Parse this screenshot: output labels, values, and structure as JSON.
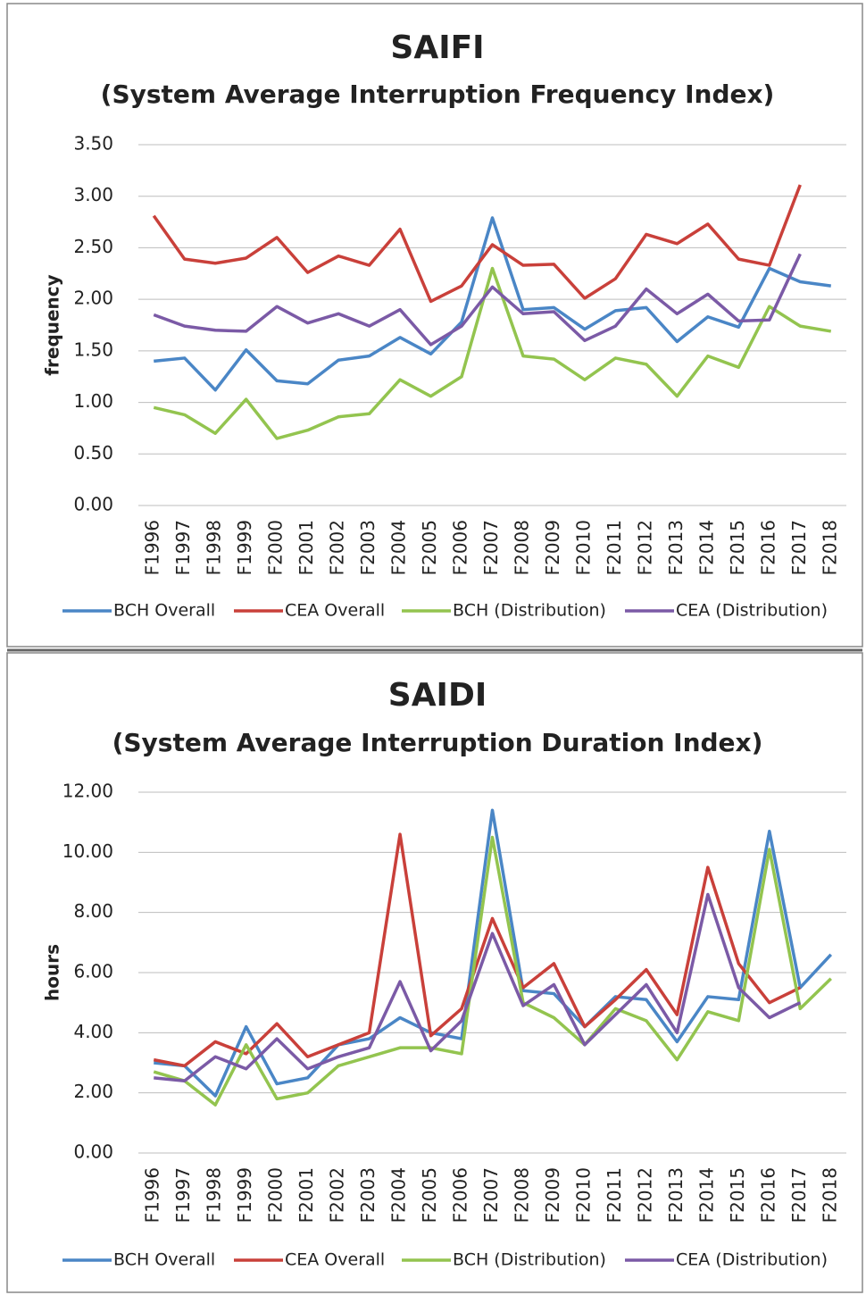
{
  "chart_data": [
    {
      "type": "line",
      "title": "SAIFI",
      "subtitle": "(System Average Interruption Frequency Index)",
      "y_label": "frequency",
      "categories": [
        "F1996",
        "F1997",
        "F1998",
        "F1999",
        "F2000",
        "F2001",
        "F2002",
        "F2003",
        "F2004",
        "F2005",
        "F2006",
        "F2007",
        "F2008",
        "F2009",
        "F2010",
        "F2011",
        "F2012",
        "F2013",
        "F2014",
        "F2015",
        "F2016",
        "F2017",
        "F2018"
      ],
      "ylim": [
        0,
        3.5
      ],
      "yticks": [
        {
          "value": 0,
          "label": "0.00"
        },
        {
          "value": 0.5,
          "label": "0.50"
        },
        {
          "value": 1,
          "label": "1.00"
        },
        {
          "value": 1.5,
          "label": "1.50"
        },
        {
          "value": 2,
          "label": "2.00"
        },
        {
          "value": 2.5,
          "label": "2.50"
        },
        {
          "value": 3,
          "label": "3.00"
        },
        {
          "value": 3.5,
          "label": "3.50"
        }
      ],
      "grid": true,
      "legend": "bottom",
      "series": [
        {
          "name": "BCH Overall",
          "color": "#4a86c6",
          "values": [
            1.4,
            1.43,
            1.12,
            1.51,
            1.21,
            1.18,
            1.41,
            1.45,
            1.63,
            1.47,
            1.78,
            2.79,
            1.9,
            1.92,
            1.71,
            1.89,
            1.92,
            1.59,
            1.83,
            1.73,
            2.3,
            2.17,
            2.13
          ]
        },
        {
          "name": "CEA Overall",
          "color": "#c9403a",
          "values": [
            2.81,
            2.39,
            2.35,
            2.4,
            2.6,
            2.26,
            2.42,
            2.33,
            2.68,
            1.98,
            2.13,
            2.53,
            2.33,
            2.34,
            2.01,
            2.2,
            2.63,
            2.54,
            2.73,
            2.39,
            2.33,
            3.11,
            null
          ]
        },
        {
          "name": "BCH (Distribution)",
          "color": "#93c44f",
          "values": [
            0.95,
            0.88,
            0.7,
            1.03,
            0.65,
            0.73,
            0.86,
            0.89,
            1.22,
            1.06,
            1.25,
            2.3,
            1.45,
            1.42,
            1.22,
            1.43,
            1.37,
            1.06,
            1.45,
            1.34,
            1.93,
            1.74,
            1.69
          ]
        },
        {
          "name": "CEA (Distribution)",
          "color": "#7b5aa6",
          "values": [
            1.85,
            1.74,
            1.7,
            1.69,
            1.93,
            1.77,
            1.86,
            1.74,
            1.9,
            1.56,
            1.74,
            2.12,
            1.86,
            1.88,
            1.6,
            1.74,
            2.1,
            1.86,
            2.05,
            1.79,
            1.8,
            2.44,
            null
          ]
        }
      ]
    },
    {
      "type": "line",
      "title": "SAIDI",
      "subtitle": "(System Average Interruption Duration Index)",
      "y_label": "hours",
      "categories": [
        "F1996",
        "F1997",
        "F1998",
        "F1999",
        "F2000",
        "F2001",
        "F2002",
        "F2003",
        "F2004",
        "F2005",
        "F2006",
        "F2007",
        "F2008",
        "F2009",
        "F2010",
        "F2011",
        "F2012",
        "F2013",
        "F2014",
        "F2015",
        "F2016",
        "F2017",
        "F2018"
      ],
      "ylim": [
        0,
        12
      ],
      "yticks": [
        {
          "value": 0,
          "label": "0.00"
        },
        {
          "value": 2,
          "label": "2.00"
        },
        {
          "value": 4,
          "label": "4.00"
        },
        {
          "value": 6,
          "label": "6.00"
        },
        {
          "value": 8,
          "label": "8.00"
        },
        {
          "value": 10,
          "label": "10.00"
        },
        {
          "value": 12,
          "label": "12.00"
        }
      ],
      "grid": true,
      "legend": "bottom",
      "series": [
        {
          "name": "BCH Overall",
          "color": "#4a86c6",
          "values": [
            3.0,
            2.9,
            1.9,
            4.2,
            2.3,
            2.5,
            3.6,
            3.8,
            4.5,
            4.0,
            3.8,
            11.4,
            5.4,
            5.3,
            4.2,
            5.2,
            5.1,
            3.7,
            5.2,
            5.1,
            10.7,
            5.5,
            6.6
          ]
        },
        {
          "name": "CEA Overall",
          "color": "#c9403a",
          "values": [
            3.1,
            2.9,
            3.7,
            3.3,
            4.3,
            3.2,
            3.6,
            4.0,
            10.6,
            3.9,
            4.8,
            7.8,
            5.5,
            6.3,
            4.2,
            5.1,
            6.1,
            4.6,
            9.5,
            6.3,
            5.0,
            5.5,
            null
          ]
        },
        {
          "name": "BCH (Distribution)",
          "color": "#93c44f",
          "values": [
            2.7,
            2.4,
            1.6,
            3.6,
            1.8,
            2.0,
            2.9,
            3.2,
            3.5,
            3.5,
            3.3,
            10.5,
            5.0,
            4.5,
            3.6,
            4.8,
            4.4,
            3.1,
            4.7,
            4.4,
            10.1,
            4.8,
            5.8
          ]
        },
        {
          "name": "CEA (Distribution)",
          "color": "#7b5aa6",
          "values": [
            2.5,
            2.4,
            3.2,
            2.8,
            3.8,
            2.8,
            3.2,
            3.5,
            5.7,
            3.4,
            4.4,
            7.3,
            4.9,
            5.6,
            3.6,
            4.6,
            5.6,
            4.0,
            8.6,
            5.5,
            4.5,
            5.0,
            null
          ]
        }
      ]
    }
  ]
}
